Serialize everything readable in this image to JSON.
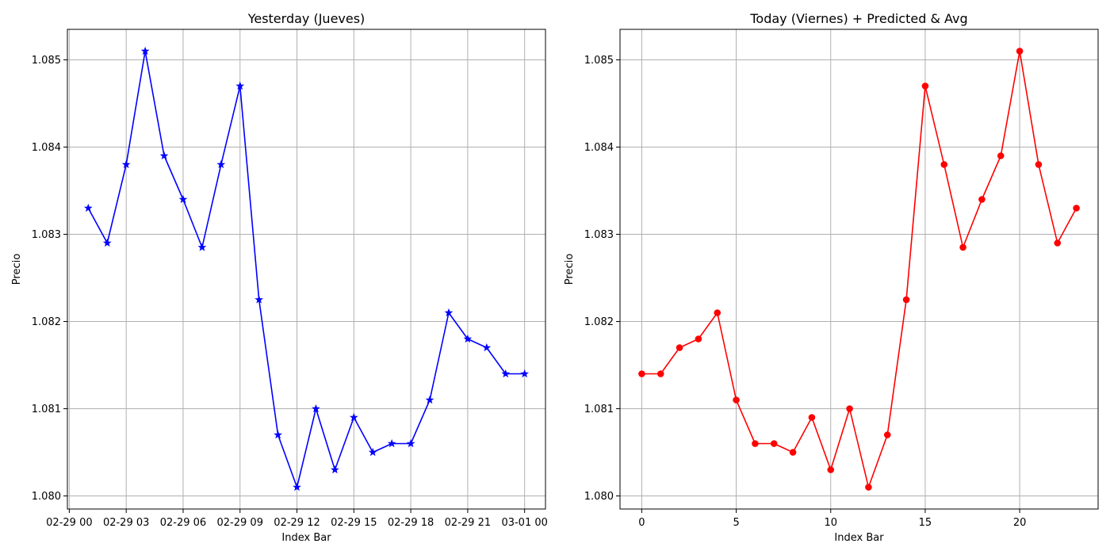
{
  "chart_data": [
    {
      "type": "line",
      "title": "Yesterday (Jueves)",
      "xlabel": "Index Bar",
      "ylabel": "Precio",
      "x_hours": [
        1,
        2,
        3,
        4,
        5,
        6,
        7,
        8,
        9,
        10,
        11,
        12,
        13,
        14,
        15,
        16,
        17,
        18,
        19,
        20,
        21,
        22,
        23,
        24
      ],
      "xticks": {
        "values": [
          0,
          3,
          6,
          9,
          12,
          15,
          18,
          21,
          24
        ],
        "labels": [
          "02-29 00",
          "02-29 03",
          "02-29 06",
          "02-29 09",
          "02-29 12",
          "02-29 15",
          "02-29 18",
          "02-29 21",
          "03-01 00"
        ]
      },
      "xlim": [
        -0.1,
        25.1
      ],
      "ylim": [
        1.07985,
        1.08535
      ],
      "yticks": {
        "values": [
          1.08,
          1.081,
          1.082,
          1.083,
          1.084,
          1.085
        ],
        "labels": [
          "1.080",
          "1.081",
          "1.082",
          "1.083",
          "1.084",
          "1.085"
        ]
      },
      "grid": true,
      "series": [
        {
          "color": "#0000ff",
          "marker": "star",
          "values": [
            1.0833,
            1.0829,
            1.0838,
            1.0851,
            1.0839,
            1.0834,
            1.08285,
            1.0838,
            1.0847,
            1.08225,
            1.0807,
            1.0801,
            1.081,
            1.0803,
            1.0809,
            1.0805,
            1.0806,
            1.0806,
            1.0811,
            1.0821,
            1.0818,
            1.0817,
            1.0814,
            1.0814
          ]
        }
      ]
    },
    {
      "type": "line",
      "title": "Today (Viernes)  + Predicted & Avg",
      "xlabel": "Index Bar",
      "ylabel": "Precio",
      "x": [
        0,
        1,
        2,
        3,
        4,
        5,
        6,
        7,
        8,
        9,
        10,
        11,
        12,
        13,
        14,
        15,
        16,
        17,
        18,
        19,
        20,
        21,
        22,
        23
      ],
      "xticks": {
        "values": [
          0,
          5,
          10,
          15,
          20
        ],
        "labels": [
          "0",
          "5",
          "10",
          "15",
          "20"
        ]
      },
      "xlim": [
        -1.15,
        24.15
      ],
      "ylim": [
        1.07985,
        1.08535
      ],
      "yticks": {
        "values": [
          1.08,
          1.081,
          1.082,
          1.083,
          1.084,
          1.085
        ],
        "labels": [
          "1.080",
          "1.081",
          "1.082",
          "1.083",
          "1.084",
          "1.085"
        ]
      },
      "grid": true,
      "series": [
        {
          "color": "#ff0000",
          "marker": "circle",
          "values": [
            1.0814,
            1.0814,
            1.0817,
            1.0818,
            1.0821,
            1.0811,
            1.0806,
            1.0806,
            1.0805,
            1.0809,
            1.0803,
            1.081,
            1.0801,
            1.0807,
            1.08225,
            1.0847,
            1.0838,
            1.08285,
            1.0834,
            1.0839,
            1.0851,
            1.0838,
            1.0829,
            1.0833
          ]
        }
      ]
    }
  ]
}
